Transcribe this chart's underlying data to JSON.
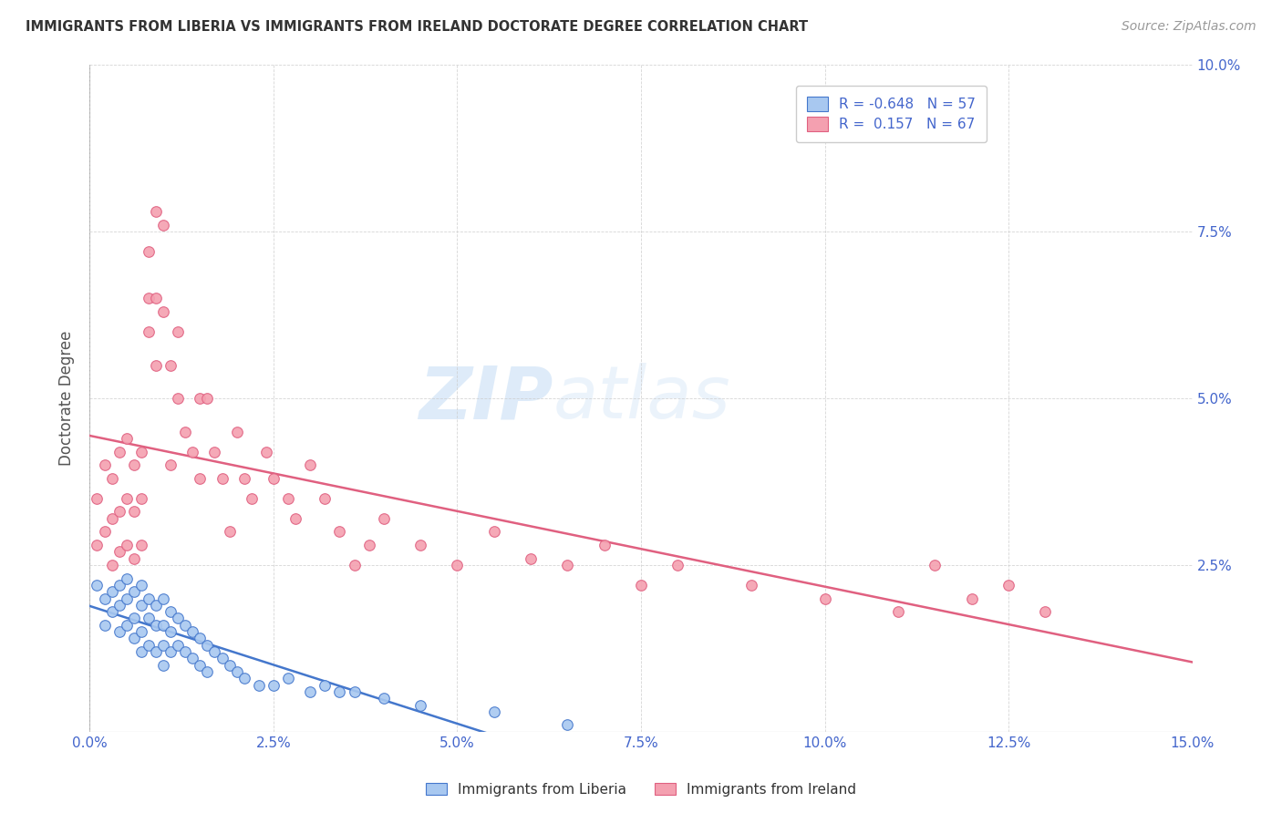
{
  "title": "IMMIGRANTS FROM LIBERIA VS IMMIGRANTS FROM IRELAND DOCTORATE DEGREE CORRELATION CHART",
  "source": "Source: ZipAtlas.com",
  "ylabel": "Doctorate Degree",
  "xlim": [
    0.0,
    0.15
  ],
  "ylim": [
    0.0,
    0.1
  ],
  "color_liberia": "#a8c8f0",
  "color_ireland": "#f4a0b0",
  "line_color_liberia": "#4477cc",
  "line_color_ireland": "#e06080",
  "legend_text_color": "#4466cc",
  "watermark_zip": "ZIP",
  "watermark_atlas": "atlas",
  "R_liberia": -0.648,
  "N_liberia": 57,
  "R_ireland": 0.157,
  "N_ireland": 67,
  "liberia_x": [
    0.001,
    0.002,
    0.002,
    0.003,
    0.003,
    0.004,
    0.004,
    0.004,
    0.005,
    0.005,
    0.005,
    0.006,
    0.006,
    0.006,
    0.007,
    0.007,
    0.007,
    0.007,
    0.008,
    0.008,
    0.008,
    0.009,
    0.009,
    0.009,
    0.01,
    0.01,
    0.01,
    0.01,
    0.011,
    0.011,
    0.011,
    0.012,
    0.012,
    0.013,
    0.013,
    0.014,
    0.014,
    0.015,
    0.015,
    0.016,
    0.016,
    0.017,
    0.018,
    0.019,
    0.02,
    0.021,
    0.023,
    0.025,
    0.027,
    0.03,
    0.032,
    0.034,
    0.036,
    0.04,
    0.045,
    0.055,
    0.065
  ],
  "liberia_y": [
    0.022,
    0.02,
    0.016,
    0.021,
    0.018,
    0.022,
    0.019,
    0.015,
    0.023,
    0.02,
    0.016,
    0.021,
    0.017,
    0.014,
    0.022,
    0.019,
    0.015,
    0.012,
    0.02,
    0.017,
    0.013,
    0.019,
    0.016,
    0.012,
    0.02,
    0.016,
    0.013,
    0.01,
    0.018,
    0.015,
    0.012,
    0.017,
    0.013,
    0.016,
    0.012,
    0.015,
    0.011,
    0.014,
    0.01,
    0.013,
    0.009,
    0.012,
    0.011,
    0.01,
    0.009,
    0.008,
    0.007,
    0.007,
    0.008,
    0.006,
    0.007,
    0.006,
    0.006,
    0.005,
    0.004,
    0.003,
    0.001
  ],
  "ireland_x": [
    0.001,
    0.001,
    0.002,
    0.002,
    0.003,
    0.003,
    0.003,
    0.004,
    0.004,
    0.004,
    0.005,
    0.005,
    0.005,
    0.006,
    0.006,
    0.006,
    0.007,
    0.007,
    0.007,
    0.008,
    0.008,
    0.008,
    0.009,
    0.009,
    0.009,
    0.01,
    0.01,
    0.011,
    0.011,
    0.012,
    0.012,
    0.013,
    0.014,
    0.015,
    0.015,
    0.016,
    0.017,
    0.018,
    0.019,
    0.02,
    0.021,
    0.022,
    0.024,
    0.025,
    0.027,
    0.028,
    0.03,
    0.032,
    0.034,
    0.036,
    0.038,
    0.04,
    0.045,
    0.05,
    0.055,
    0.06,
    0.065,
    0.07,
    0.075,
    0.08,
    0.09,
    0.1,
    0.11,
    0.115,
    0.12,
    0.125,
    0.13
  ],
  "ireland_y": [
    0.035,
    0.028,
    0.04,
    0.03,
    0.038,
    0.032,
    0.025,
    0.042,
    0.033,
    0.027,
    0.044,
    0.035,
    0.028,
    0.04,
    0.033,
    0.026,
    0.042,
    0.035,
    0.028,
    0.065,
    0.072,
    0.06,
    0.078,
    0.065,
    0.055,
    0.076,
    0.063,
    0.055,
    0.04,
    0.06,
    0.05,
    0.045,
    0.042,
    0.05,
    0.038,
    0.05,
    0.042,
    0.038,
    0.03,
    0.045,
    0.038,
    0.035,
    0.042,
    0.038,
    0.035,
    0.032,
    0.04,
    0.035,
    0.03,
    0.025,
    0.028,
    0.032,
    0.028,
    0.025,
    0.03,
    0.026,
    0.025,
    0.028,
    0.022,
    0.025,
    0.022,
    0.02,
    0.018,
    0.025,
    0.02,
    0.022,
    0.018
  ]
}
